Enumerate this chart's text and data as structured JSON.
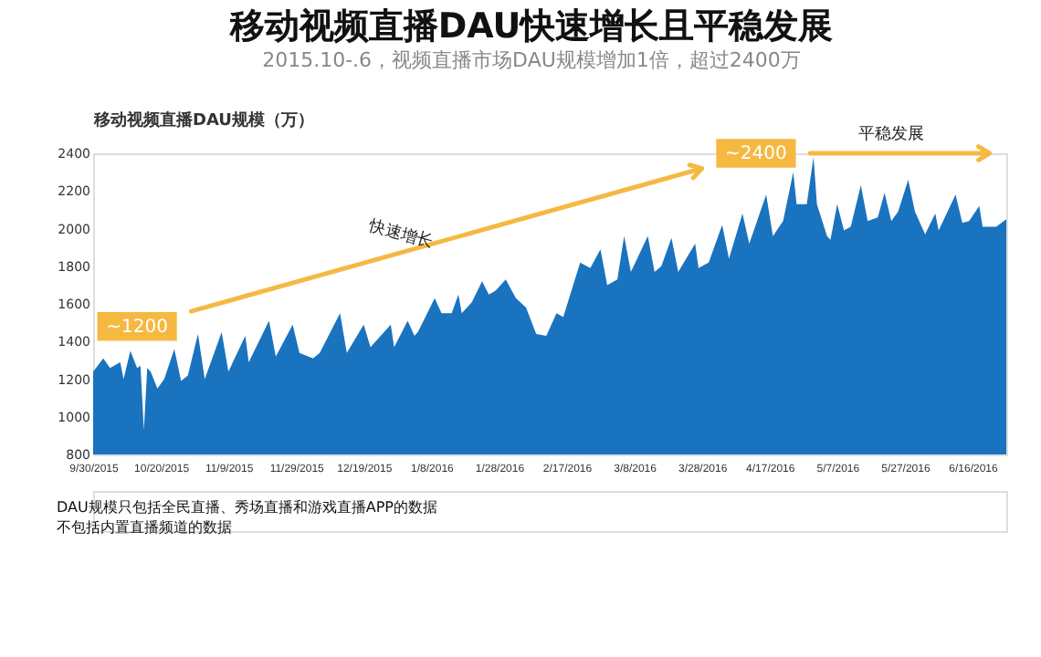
{
  "chart_data": {
    "type": "area",
    "title": "移动视频直播DAU快速增长且平稳发展",
    "subtitle": "2015.10-.6，视频直播市场DAU规模增加1倍，超过2400万",
    "ylabel": "移动视频直播DAU规模（万）",
    "x": [
      "2015-09-30",
      "2015-10-03",
      "2015-10-05",
      "2015-10-08",
      "2015-10-09",
      "2015-10-11",
      "2015-10-13",
      "2015-10-14",
      "2015-10-15",
      "2015-10-16",
      "2015-10-17",
      "2015-10-19",
      "2015-10-21",
      "2015-10-24",
      "2015-10-26",
      "2015-10-28",
      "2015-10-31",
      "2015-11-02",
      "2015-11-07",
      "2015-11-09",
      "2015-11-14",
      "2015-11-15",
      "2015-11-21",
      "2015-11-23",
      "2015-11-28",
      "2015-11-30",
      "2015-12-04",
      "2015-12-06",
      "2015-12-12",
      "2015-12-14",
      "2015-12-19",
      "2015-12-21",
      "2015-12-27",
      "2015-12-28",
      "2016-01-01",
      "2016-01-03",
      "2016-01-04",
      "2016-01-09",
      "2016-01-11",
      "2016-01-14",
      "2016-01-16",
      "2016-01-17",
      "2016-01-20",
      "2016-01-23",
      "2016-01-25",
      "2016-01-27",
      "2016-01-30",
      "2016-02-02",
      "2016-02-05",
      "2016-02-08",
      "2016-02-11",
      "2016-02-14",
      "2016-02-16",
      "2016-02-21",
      "2016-02-24",
      "2016-02-27",
      "2016-02-29",
      "2016-03-03",
      "2016-03-05",
      "2016-03-07",
      "2016-03-12",
      "2016-03-14",
      "2016-03-16",
      "2016-03-19",
      "2016-03-21",
      "2016-03-26",
      "2016-03-27",
      "2016-03-30",
      "2016-04-03",
      "2016-04-05",
      "2016-04-09",
      "2016-04-11",
      "2016-04-16",
      "2016-04-18",
      "2016-04-21",
      "2016-04-24",
      "2016-04-25",
      "2016-04-28",
      "2016-04-30",
      "2016-05-01",
      "2016-05-04",
      "2016-05-05",
      "2016-05-07",
      "2016-05-09",
      "2016-05-11",
      "2016-05-14",
      "2016-05-16",
      "2016-05-19",
      "2016-05-21",
      "2016-05-23",
      "2016-05-25",
      "2016-05-28",
      "2016-05-30",
      "2016-06-02",
      "2016-06-05",
      "2016-06-06",
      "2016-06-11",
      "2016-06-13",
      "2016-06-15",
      "2016-06-18",
      "2016-06-19",
      "2016-06-23",
      "2016-06-26"
    ],
    "series": [
      {
        "color": "#1a73be",
        "values": [
          1240,
          1310,
          1260,
          1290,
          1200,
          1350,
          1260,
          1270,
          930,
          1260,
          1240,
          1150,
          1200,
          1360,
          1190,
          1220,
          1440,
          1200,
          1450,
          1240,
          1430,
          1290,
          1510,
          1320,
          1490,
          1340,
          1310,
          1340,
          1550,
          1340,
          1490,
          1370,
          1490,
          1370,
          1510,
          1430,
          1450,
          1630,
          1550,
          1550,
          1650,
          1550,
          1610,
          1720,
          1650,
          1670,
          1730,
          1630,
          1580,
          1440,
          1430,
          1550,
          1530,
          1820,
          1790,
          1890,
          1700,
          1730,
          1960,
          1770,
          1960,
          1770,
          1800,
          1950,
          1770,
          1920,
          1790,
          1820,
          2020,
          1840,
          2080,
          1920,
          2180,
          1960,
          2040,
          2300,
          2130,
          2130,
          2380,
          2130,
          1960,
          1940,
          2130,
          1990,
          2010,
          2230,
          2040,
          2060,
          2190,
          2040,
          2090,
          2260,
          2090,
          1970,
          2080,
          1990,
          2180,
          2030,
          2040,
          2120,
          2010,
          2010,
          2050
        ]
      }
    ],
    "xlim": [
      "2015-09-30",
      "2016-06-26"
    ],
    "xticks": [
      {
        "value": "2015-09-30",
        "label": "9/30/2015"
      },
      {
        "value": "2015-10-20",
        "label": "10/20/2015"
      },
      {
        "value": "2015-11-09",
        "label": "11/9/2015"
      },
      {
        "value": "2015-11-29",
        "label": "11/29/2015"
      },
      {
        "value": "2015-12-19",
        "label": "12/19/2015"
      },
      {
        "value": "2016-01-08",
        "label": "1/8/2016"
      },
      {
        "value": "2016-01-28",
        "label": "1/28/2016"
      },
      {
        "value": "2016-02-17",
        "label": "2/17/2016"
      },
      {
        "value": "2016-03-08",
        "label": "3/8/2016"
      },
      {
        "value": "2016-03-28",
        "label": "3/28/2016"
      },
      {
        "value": "2016-04-17",
        "label": "4/17/2016"
      },
      {
        "value": "2016-05-07",
        "label": "5/7/2016"
      },
      {
        "value": "2016-05-27",
        "label": "5/27/2016"
      },
      {
        "value": "2016-06-16",
        "label": "6/16/2016"
      }
    ],
    "ylim": [
      800,
      2400
    ],
    "yticks": [
      800,
      1000,
      1200,
      1400,
      1600,
      1800,
      2000,
      2200,
      2400
    ],
    "grid": false,
    "annotations": [
      {
        "text": "~1200",
        "x": "2015-10-13",
        "y": 1480
      },
      {
        "text": "~2400",
        "x": "2016-04-13",
        "y": 2400
      },
      "快速增长",
      "平稳发展",
      "DAU规模只包括全民直播、秀场直播和游戏直播APP的数据",
      "不包括内置直播频道的数据"
    ]
  }
}
